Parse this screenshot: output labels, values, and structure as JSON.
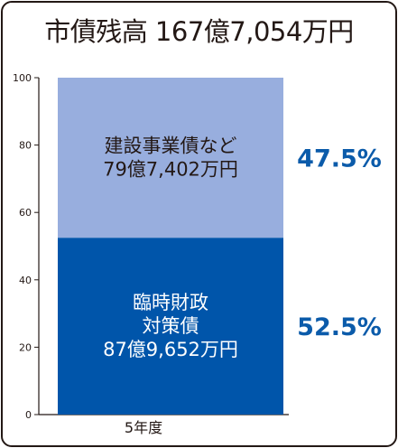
{
  "title": "市債残高 167億7,054万円",
  "colors": {
    "segment_top": "#98AEDE",
    "segment_bottom": "#0055AA",
    "percent_text": "#0B5BAA",
    "text_dark": "#231815",
    "text_light": "#ffffff"
  },
  "chart_data": {
    "type": "bar",
    "stacked": true,
    "categories": [
      "5年度"
    ],
    "ylim": [
      0,
      100
    ],
    "yticks": [
      0,
      20,
      40,
      60,
      80,
      100
    ],
    "grid": false,
    "series": [
      {
        "name": "臨時財政対策債",
        "label_lines": [
          "臨時財政",
          "対策債",
          "87億9,652万円"
        ],
        "values": [
          52.5
        ],
        "percent_label": "52.5%"
      },
      {
        "name": "建設事業債など",
        "label_lines": [
          "建設事業債など",
          "79億7,402万円"
        ],
        "values": [
          47.5
        ],
        "percent_label": "47.5%"
      }
    ]
  }
}
